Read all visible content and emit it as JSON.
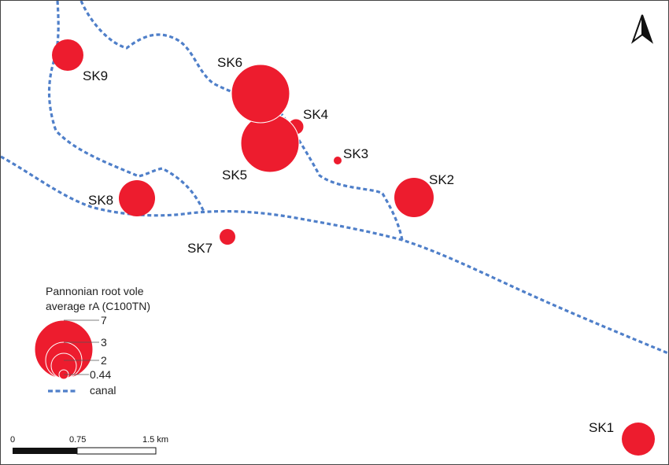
{
  "colors": {
    "site": "#ED1C2E",
    "canal": "#4F7FC9"
  },
  "sites": [
    {
      "id": "SK1",
      "value": 2
    },
    {
      "id": "SK2",
      "value": 3
    },
    {
      "id": "SK3",
      "value": 0.15
    },
    {
      "id": "SK4",
      "value": 0.6
    },
    {
      "id": "SK5",
      "value": 7
    },
    {
      "id": "SK6",
      "value": 7
    },
    {
      "id": "SK7",
      "value": 0.6
    },
    {
      "id": "SK8",
      "value": 2.5
    },
    {
      "id": "SK9",
      "value": 2
    }
  ],
  "legend": {
    "title_line1": "Pannonian root vole",
    "title_line2": "average rA (C100TN)",
    "classes": [
      "7",
      "3",
      "2",
      "0.44"
    ],
    "canal_label": "canal"
  },
  "scalebar": {
    "labels": [
      "0",
      "0.75",
      "1.5 km"
    ]
  },
  "north_arrow": "north-arrow-icon"
}
